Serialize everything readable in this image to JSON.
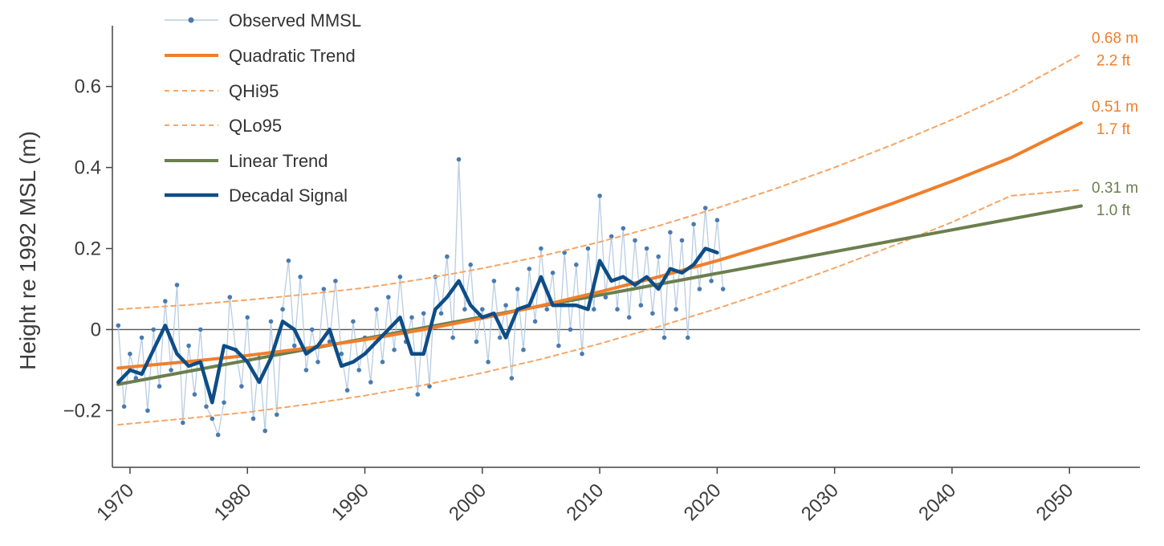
{
  "chart_data": {
    "type": "line",
    "title": "",
    "xlabel": "",
    "ylabel": "Height re 1992 MSL (m)",
    "xlim": [
      1968.5,
      2056
    ],
    "ylim": [
      -0.34,
      0.75
    ],
    "x_ticks": [
      1970,
      1980,
      1990,
      2000,
      2010,
      2020,
      2030,
      2040,
      2050
    ],
    "y_ticks": [
      {
        "value": -0.2,
        "label": "−0.2"
      },
      {
        "value": 0,
        "label": "0"
      },
      {
        "value": 0.2,
        "label": "0.2"
      },
      {
        "value": 0.4,
        "label": "0.4"
      },
      {
        "value": 0.6,
        "label": "0.6"
      }
    ],
    "grid": false,
    "zero_line": true,
    "legend_position": "top-left",
    "colors": {
      "observed": "#4a7ab0",
      "observed_line": "#b9cde2",
      "quadratic": "#f07f2b",
      "linear": "#6b7f4d",
      "decadal": "#0e4d86",
      "axis": "#444444"
    },
    "series": [
      {
        "name": "Observed MMSL",
        "style": "markers+thin-line",
        "description": "monthly mean sea level, 1969-2020 (approximate sampled values)",
        "x": [
          1969.0,
          1969.5,
          1970.0,
          1970.5,
          1971.0,
          1971.5,
          1972.0,
          1972.5,
          1973.0,
          1973.5,
          1974.0,
          1974.5,
          1975.0,
          1975.5,
          1976.0,
          1976.5,
          1977.0,
          1977.5,
          1978.0,
          1978.5,
          1979.0,
          1979.5,
          1980.0,
          1980.5,
          1981.0,
          1981.5,
          1982.0,
          1982.5,
          1983.0,
          1983.5,
          1984.0,
          1984.5,
          1985.0,
          1985.5,
          1986.0,
          1986.5,
          1987.0,
          1987.5,
          1988.0,
          1988.5,
          1989.0,
          1989.5,
          1990.0,
          1990.5,
          1991.0,
          1991.5,
          1992.0,
          1992.5,
          1993.0,
          1993.5,
          1994.0,
          1994.5,
          1995.0,
          1995.5,
          1996.0,
          1996.5,
          1997.0,
          1997.5,
          1998.0,
          1998.5,
          1999.0,
          1999.5,
          2000.0,
          2000.5,
          2001.0,
          2001.5,
          2002.0,
          2002.5,
          2003.0,
          2003.5,
          2004.0,
          2004.5,
          2005.0,
          2005.5,
          2006.0,
          2006.5,
          2007.0,
          2007.5,
          2008.0,
          2008.5,
          2009.0,
          2009.5,
          2010.0,
          2010.5,
          2011.0,
          2011.5,
          2012.0,
          2012.5,
          2013.0,
          2013.5,
          2014.0,
          2014.5,
          2015.0,
          2015.5,
          2016.0,
          2016.5,
          2017.0,
          2017.5,
          2018.0,
          2018.5,
          2019.0,
          2019.5,
          2020.0,
          2020.5
        ],
        "values": [
          0.01,
          -0.19,
          -0.06,
          -0.12,
          -0.02,
          -0.2,
          0.0,
          -0.14,
          0.07,
          -0.1,
          0.11,
          -0.23,
          -0.04,
          -0.16,
          0.0,
          -0.19,
          -0.22,
          -0.26,
          -0.18,
          0.08,
          -0.05,
          -0.14,
          0.03,
          -0.22,
          -0.07,
          -0.25,
          0.02,
          -0.21,
          0.05,
          0.17,
          -0.04,
          0.13,
          -0.1,
          0.0,
          -0.08,
          0.1,
          -0.03,
          0.12,
          -0.06,
          -0.15,
          0.02,
          -0.1,
          -0.02,
          -0.13,
          0.05,
          -0.08,
          0.08,
          -0.05,
          0.13,
          -0.03,
          0.03,
          -0.16,
          0.04,
          -0.14,
          0.13,
          0.04,
          0.18,
          -0.02,
          0.42,
          0.05,
          0.16,
          -0.03,
          0.05,
          -0.08,
          0.12,
          -0.02,
          0.06,
          -0.12,
          0.1,
          -0.05,
          0.15,
          0.02,
          0.2,
          0.05,
          0.14,
          -0.04,
          0.19,
          0.0,
          0.16,
          -0.06,
          0.2,
          0.05,
          0.33,
          0.08,
          0.23,
          0.05,
          0.25,
          0.03,
          0.22,
          0.06,
          0.2,
          0.04,
          0.18,
          -0.02,
          0.24,
          0.05,
          0.22,
          -0.02,
          0.26,
          0.1,
          0.3,
          0.12,
          0.27,
          0.1
        ]
      },
      {
        "name": "Quadratic Trend",
        "style": "solid",
        "x": [
          1969,
          1975,
          1980,
          1985,
          1990,
          1995,
          2000,
          2005,
          2010,
          2015,
          2020,
          2025,
          2030,
          2035,
          2040,
          2045,
          2051
        ],
        "values": [
          -0.095,
          -0.079,
          -0.064,
          -0.046,
          -0.025,
          0.0,
          0.028,
          0.059,
          0.093,
          0.13,
          0.17,
          0.214,
          0.261,
          0.312,
          0.366,
          0.424,
          0.51
        ]
      },
      {
        "name": "QHi95",
        "style": "dashed",
        "x": [
          1969,
          1975,
          1980,
          1985,
          1990,
          1995,
          2000,
          2005,
          2010,
          2015,
          2020,
          2025,
          2030,
          2035,
          2040,
          2045,
          2051
        ],
        "values": [
          0.05,
          0.061,
          0.073,
          0.087,
          0.103,
          0.125,
          0.151,
          0.181,
          0.216,
          0.256,
          0.3,
          0.348,
          0.4,
          0.457,
          0.518,
          0.584,
          0.68
        ]
      },
      {
        "name": "QLo95",
        "style": "dashed",
        "x": [
          1969,
          1975,
          1980,
          1985,
          1990,
          1995,
          2000,
          2005,
          2010,
          2015,
          2020,
          2025,
          2030,
          2035,
          2040,
          2045,
          2051
        ],
        "values": [
          -0.235,
          -0.219,
          -0.204,
          -0.185,
          -0.163,
          -0.137,
          -0.107,
          -0.073,
          -0.035,
          0.007,
          0.052,
          0.1,
          0.152,
          0.207,
          0.265,
          0.33,
          0.345
        ]
      },
      {
        "name": "Linear Trend",
        "style": "solid",
        "x": [
          1969,
          2051
        ],
        "values": [
          -0.135,
          0.305
        ]
      },
      {
        "name": "Decadal Signal",
        "style": "thick-solid",
        "x": [
          1969,
          1970,
          1971,
          1972,
          1973,
          1974,
          1975,
          1976,
          1977,
          1978,
          1979,
          1980,
          1981,
          1982,
          1983,
          1984,
          1985,
          1986,
          1987,
          1988,
          1989,
          1990,
          1991,
          1992,
          1993,
          1994,
          1995,
          1996,
          1997,
          1998,
          1999,
          2000,
          2001,
          2002,
          2003,
          2004,
          2005,
          2006,
          2007,
          2008,
          2009,
          2010,
          2011,
          2012,
          2013,
          2014,
          2015,
          2016,
          2017,
          2018,
          2019,
          2020
        ],
        "values": [
          -0.13,
          -0.1,
          -0.11,
          -0.05,
          0.01,
          -0.06,
          -0.09,
          -0.08,
          -0.18,
          -0.04,
          -0.05,
          -0.08,
          -0.13,
          -0.07,
          0.02,
          0.0,
          -0.06,
          -0.04,
          0.0,
          -0.09,
          -0.08,
          -0.06,
          -0.03,
          0.0,
          0.03,
          -0.06,
          -0.06,
          0.05,
          0.08,
          0.12,
          0.06,
          0.03,
          0.04,
          -0.02,
          0.05,
          0.06,
          0.13,
          0.06,
          0.06,
          0.06,
          0.05,
          0.17,
          0.12,
          0.13,
          0.11,
          0.13,
          0.1,
          0.15,
          0.14,
          0.16,
          0.2,
          0.19
        ]
      }
    ],
    "end_labels": [
      {
        "series": "QHi95",
        "value_m": 0.68,
        "metric": "0.68 m",
        "imperial": "2.2 ft"
      },
      {
        "series": "Quadratic Trend",
        "value_m": 0.51,
        "metric": "0.51 m",
        "imperial": "1.7 ft"
      },
      {
        "series": "Linear Trend",
        "value_m": 0.31,
        "metric": "0.31 m",
        "imperial": "1.0 ft"
      }
    ]
  },
  "legend": {
    "items": [
      {
        "label": "Observed MMSL",
        "icon": "dot-line"
      },
      {
        "label": "Quadratic Trend",
        "icon": "solid-line"
      },
      {
        "label": "QHi95",
        "icon": "dashed-line"
      },
      {
        "label": "QLo95",
        "icon": "dashed-line"
      },
      {
        "label": "Linear Trend",
        "icon": "solid-line"
      },
      {
        "label": "Decadal Signal",
        "icon": "thick-line"
      }
    ]
  }
}
